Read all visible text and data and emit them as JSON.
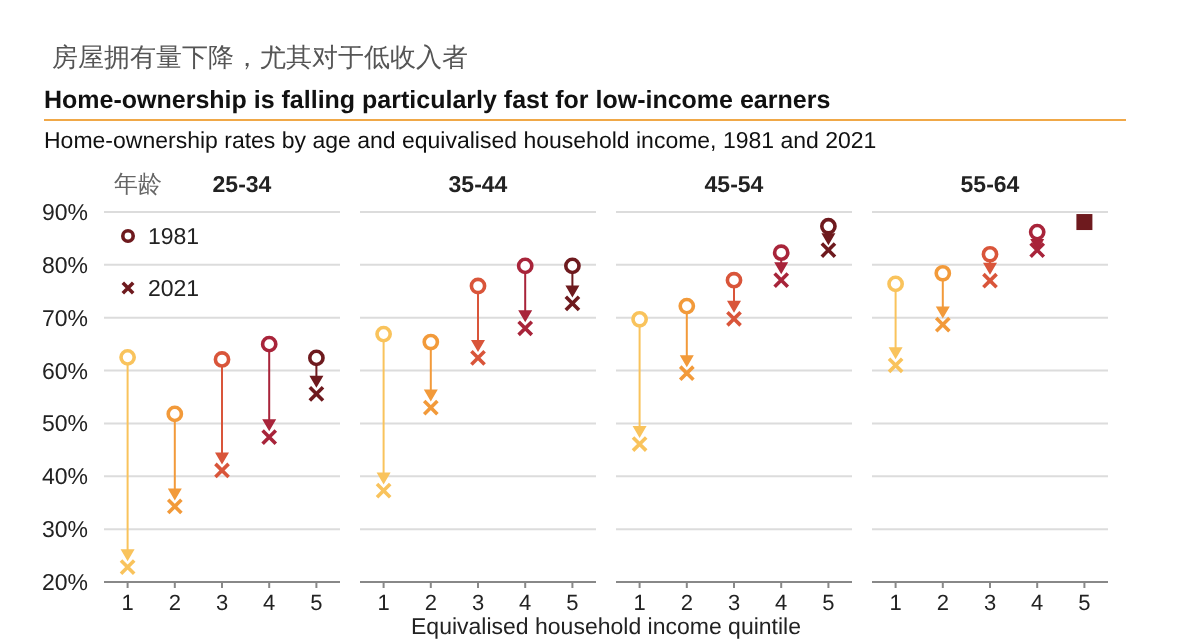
{
  "chart_data": [
    {
      "type": "other",
      "title": "Home-ownership is falling particularly fast for low-income earners",
      "subtitle": "Home-ownership rates by age and equivalised household income, 1981 and 2021",
      "annotations": [
        "房屋拥有量下降，尤其对于低收入者"
      ]
    },
    {
      "type": "scatter",
      "title": "25-34",
      "annotations": [
        "年龄"
      ],
      "categories": [
        "1",
        "2",
        "3",
        "4",
        "5"
      ],
      "ylim": [
        20,
        90
      ],
      "yticks": [
        {
          "value": 20,
          "label": "20%"
        },
        {
          "value": 30,
          "label": "30%"
        },
        {
          "value": 40,
          "label": "40%"
        },
        {
          "value": 50,
          "label": "50%"
        },
        {
          "value": 60,
          "label": "60%"
        },
        {
          "value": 70,
          "label": "70%"
        },
        {
          "value": 80,
          "label": "80%"
        },
        {
          "value": 90,
          "label": "90%"
        }
      ],
      "grid": "y",
      "legend": "top left",
      "series": [
        {
          "name": "1981",
          "marker": "circle",
          "color": "#6e1a1e",
          "colors": [
            "#f9c35c",
            "#f29a3a",
            "#d9553a",
            "#a8243a",
            "#6e1a1e"
          ],
          "values": [
            62.5,
            51.8,
            62.1,
            65.0,
            62.4
          ]
        },
        {
          "name": "2021",
          "marker": "cross",
          "color": "#6e1a1e",
          "colors": [
            "#f9c35c",
            "#f29a3a",
            "#d9553a",
            "#a8243a",
            "#6e1a1e"
          ],
          "values": [
            22.8,
            34.3,
            41.1,
            47.4,
            55.6
          ]
        }
      ]
    },
    {
      "type": "scatter",
      "title": "35-44",
      "xlabel": "Equivalised household income quintile",
      "categories": [
        "1",
        "2",
        "3",
        "4",
        "5"
      ],
      "ylim": [
        20,
        90
      ],
      "yticks": [
        20,
        30,
        40,
        50,
        60,
        70,
        80,
        90
      ],
      "tick_labels": "x",
      "grid": "y",
      "series": [
        {
          "marker": "circle",
          "colors": [
            "#f9c35c",
            "#f29a3a",
            "#d9553a",
            "#a8243a",
            "#6e1a1e"
          ],
          "values": [
            66.9,
            65.4,
            76.0,
            79.8,
            79.8
          ]
        },
        {
          "marker": "cross",
          "colors": [
            "#f9c35c",
            "#f29a3a",
            "#d9553a",
            "#a8243a",
            "#6e1a1e"
          ],
          "values": [
            37.3,
            53.0,
            62.4,
            68.0,
            72.7
          ]
        }
      ]
    },
    {
      "type": "scatter",
      "title": "45-54",
      "categories": [
        "1",
        "2",
        "3",
        "4",
        "5"
      ],
      "ylim": [
        20,
        90
      ],
      "yticks": [
        20,
        30,
        40,
        50,
        60,
        70,
        80,
        90
      ],
      "tick_labels": "x",
      "grid": "y",
      "series": [
        {
          "marker": "circle",
          "colors": [
            "#f9c35c",
            "#f29a3a",
            "#d9553a",
            "#a8243a",
            "#6e1a1e"
          ],
          "values": [
            69.7,
            72.2,
            77.1,
            82.3,
            87.3
          ]
        },
        {
          "marker": "cross",
          "colors": [
            "#f9c35c",
            "#f29a3a",
            "#d9553a",
            "#a8243a",
            "#6e1a1e"
          ],
          "values": [
            46.1,
            59.5,
            69.8,
            77.1,
            82.8
          ]
        }
      ]
    },
    {
      "type": "scatter",
      "title": "55-64",
      "categories": [
        "1",
        "2",
        "3",
        "4",
        "5"
      ],
      "ylim": [
        20,
        90
      ],
      "yticks": [
        20,
        30,
        40,
        50,
        60,
        70,
        80,
        90
      ],
      "tick_labels": "x",
      "grid": "y",
      "series": [
        {
          "marker": "circle",
          "colors": [
            "#f9c35c",
            "#f29a3a",
            "#d9553a",
            "#a8243a",
            "#6e1a1e"
          ],
          "values": [
            76.4,
            78.4,
            82.0,
            86.2,
            null
          ]
        },
        {
          "marker": "cross",
          "colors": [
            "#f9c35c",
            "#f29a3a",
            "#d9553a",
            "#a8243a",
            "#6e1a1e"
          ],
          "values": [
            61.0,
            68.7,
            77.0,
            82.8,
            null
          ]
        },
        {
          "marker": "square",
          "colors": [
            "#f9c35c",
            "#f29a3a",
            "#d9553a",
            "#a8243a",
            "#6e1a1e"
          ],
          "values": [
            null,
            null,
            null,
            null,
            88.1
          ]
        }
      ]
    }
  ]
}
